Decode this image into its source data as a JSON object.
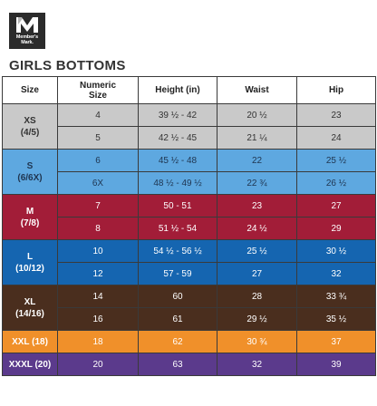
{
  "brand": {
    "line1": "Member's",
    "line2": "Mark."
  },
  "title": "GIRLS BOTTOMS",
  "headers": {
    "size": "Size",
    "numeric1": "Numeric",
    "numeric2": "Size",
    "height": "Height (in)",
    "waist": "Waist",
    "hip": "Hip"
  },
  "groups": [
    {
      "size": [
        "XS",
        "(4/5)"
      ],
      "rows": [
        {
          "numeric": "4",
          "height": "39 ½ - 42",
          "waist": "20 ½",
          "hip": "23"
        },
        {
          "numeric": "5",
          "height": "42 ½ - 45",
          "waist": "21 ¼",
          "hip": "24"
        }
      ]
    },
    {
      "size": [
        "S",
        "(6/6X)"
      ],
      "rows": [
        {
          "numeric": "6",
          "height": "45 ½ - 48",
          "waist": "22",
          "hip": "25 ½"
        },
        {
          "numeric": "6X",
          "height": "48 ½ - 49 ½",
          "waist": "22 ¾",
          "hip": "26 ½"
        }
      ]
    },
    {
      "size": [
        "M",
        "(7/8)"
      ],
      "rows": [
        {
          "numeric": "7",
          "height": "50 - 51",
          "waist": "23",
          "hip": "27"
        },
        {
          "numeric": "8",
          "height": "51 ½ - 54",
          "waist": "24 ½",
          "hip": "29"
        }
      ]
    },
    {
      "size": [
        "L",
        "(10/12)"
      ],
      "rows": [
        {
          "numeric": "10",
          "height": "54 ½ - 56 ½",
          "waist": "25 ½",
          "hip": "30 ½"
        },
        {
          "numeric": "12",
          "height": "57 - 59",
          "waist": "27",
          "hip": "32"
        }
      ]
    },
    {
      "size": [
        "XL",
        "(14/16)"
      ],
      "rows": [
        {
          "numeric": "14",
          "height": "60",
          "waist": "28",
          "hip": "33 ¾"
        },
        {
          "numeric": "16",
          "height": "61",
          "waist": "29 ½",
          "hip": "35 ½"
        }
      ]
    },
    {
      "size": [
        "XXL (18)"
      ],
      "rows": [
        {
          "numeric": "18",
          "height": "62",
          "waist": "30 ¾",
          "hip": "37"
        }
      ]
    },
    {
      "size": [
        "XXXL (20)"
      ],
      "rows": [
        {
          "numeric": "20",
          "height": "63",
          "waist": "32",
          "hip": "39"
        }
      ]
    }
  ],
  "colors": {
    "xs": "#c9c9c9",
    "s": "#5ea8e0",
    "m": "#a21d38",
    "l": "#1565b0",
    "xl": "#4a2e1e",
    "xxl": "#f0902a",
    "xxxl": "#5b3a8c"
  }
}
